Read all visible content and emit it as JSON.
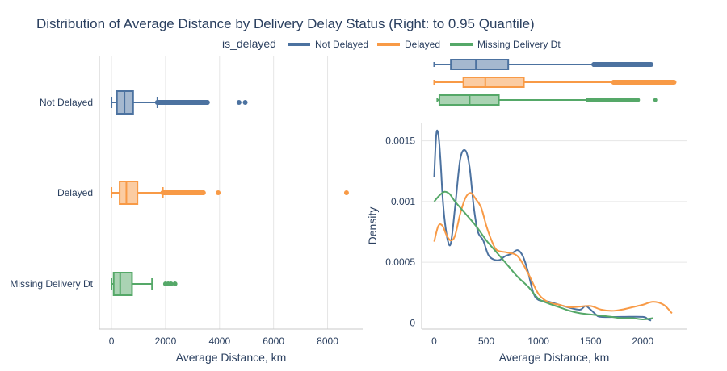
{
  "chart_data": {
    "title": "Distribution of Average Distance by Delivery Delay Status (Right: to 0.95 Quantile)",
    "legend": {
      "title": "is_delayed",
      "placement": "top-right",
      "items": [
        {
          "label": "Not Delayed",
          "color": "#4c72a0"
        },
        {
          "label": "Delayed",
          "color": "#f89a46"
        },
        {
          "label": "Missing Delivery Dt",
          "color": "#55a868"
        }
      ]
    },
    "panels": [
      {
        "type": "box",
        "orientation": "horizontal",
        "xlabel": "Average Distance, km",
        "ylabel": "",
        "xlim": [
          -450,
          9300
        ],
        "xticks": [
          0,
          2000,
          4000,
          6000,
          8000
        ],
        "xtick_labels": [
          "0",
          "2000",
          "4000",
          "6000",
          "8000"
        ],
        "grid": true,
        "categories": [
          "Not Delayed",
          "Delayed",
          "Missing Delivery Dt"
        ],
        "series": [
          {
            "name": "Not Delayed",
            "color": "#4c72a0",
            "min": 0,
            "q1": 200,
            "median": 480,
            "q3": 800,
            "whisker_high": 1700,
            "outliers": [
              1700,
              3550,
              4720,
              4950
            ]
          },
          {
            "name": "Delayed",
            "color": "#f89a46",
            "min": 0,
            "q1": 300,
            "median": 550,
            "q3": 960,
            "whisker_high": 1900,
            "outliers": [
              1900,
              3400,
              3950,
              8700
            ]
          },
          {
            "name": "Missing Delivery Dt",
            "color": "#55a868",
            "min": 0,
            "q1": 80,
            "median": 320,
            "q3": 760,
            "whisker_high": 1500,
            "outliers": [
              2000,
              2100,
              2200,
              2350
            ]
          }
        ]
      },
      {
        "type": "box",
        "orientation": "horizontal",
        "role": "marginal",
        "xlim": [
          -120,
          2420
        ],
        "series": [
          {
            "name": "Not Delayed",
            "color": "#4c72a0",
            "min": 0,
            "q1": 160,
            "median": 400,
            "q3": 710,
            "whisker_high": 1530,
            "outliers": [
              1530,
              2080
            ]
          },
          {
            "name": "Delayed",
            "color": "#f89a46",
            "min": 0,
            "q1": 280,
            "median": 490,
            "q3": 860,
            "whisker_high": 1720,
            "outliers": [
              1720,
              2300
            ]
          },
          {
            "name": "Missing Delivery Dt",
            "color": "#55a868",
            "min": 30,
            "q1": 50,
            "median": 340,
            "q3": 620,
            "whisker_high": 1460,
            "outliers": [
              1480,
              1950,
              2120
            ]
          }
        ]
      },
      {
        "type": "line",
        "subtype": "density",
        "xlabel": "Average Distance, km",
        "ylabel": "Density",
        "xlim": [
          -120,
          2420
        ],
        "ylim": [
          -5e-05,
          0.00165
        ],
        "xticks": [
          0,
          500,
          1000,
          1500,
          2000
        ],
        "xtick_labels": [
          "0",
          "500",
          "1000",
          "1500",
          "2000"
        ],
        "yticks": [
          0,
          0.0005,
          0.001,
          0.0015
        ],
        "ytick_labels": [
          "0",
          "0.0005",
          "0.001",
          "0.0015"
        ],
        "grid": true,
        "series": [
          {
            "name": "Not Delayed",
            "color": "#4c72a0",
            "x": [
              0,
              20,
              40,
              60,
              80,
              100,
              130,
              160,
              200,
              250,
              300,
              340,
              380,
              420,
              470,
              520,
              580,
              630,
              680,
              740,
              800,
              850,
              900,
              950,
              1000,
              1100,
              1200,
              1300,
              1400,
              1450,
              1500,
              1550,
              1600,
              1800,
              2000,
              2050,
              2080
            ],
            "y": [
              0.0012,
              0.00155,
              0.00155,
              0.00135,
              0.00105,
              0.00085,
              0.00068,
              0.00066,
              0.00095,
              0.00135,
              0.00142,
              0.00128,
              0.00095,
              0.00075,
              0.00068,
              0.00056,
              0.00052,
              0.00052,
              0.00055,
              0.00057,
              0.0006,
              0.00055,
              0.00042,
              0.00025,
              0.00019,
              0.000175,
              0.00015,
              0.000125,
              0.00011,
              0.00014,
              0.00011,
              7e-05,
              5e-05,
              5e-05,
              5e-05,
              3e-05,
              2e-05
            ]
          },
          {
            "name": "Delayed",
            "color": "#f89a46",
            "x": [
              0,
              40,
              80,
              120,
              160,
              200,
              250,
              300,
              350,
              400,
              450,
              500,
              550,
              600,
              700,
              800,
              900,
              1000,
              1100,
              1200,
              1300,
              1400,
              1500,
              1600,
              1700,
              1800,
              1900,
              2000,
              2100,
              2200,
              2280
            ],
            "y": [
              0.00067,
              0.0008,
              0.0008,
              0.00072,
              0.00068,
              0.00072,
              0.0009,
              0.00103,
              0.00107,
              0.00102,
              0.00095,
              0.0008,
              0.00068,
              0.0006,
              0.00058,
              0.00055,
              0.00041,
              0.00024,
              0.00017,
              0.00015,
              0.00013,
              0.000135,
              0.00014,
              0.00011,
              0.0001,
              0.00011,
              0.00013,
              0.00015,
              0.000175,
              0.00015,
              8e-05
            ]
          },
          {
            "name": "Missing Delivery Dt",
            "color": "#55a868",
            "x": [
              0,
              50,
              100,
              150,
              200,
              300,
              400,
              500,
              600,
              700,
              800,
              900,
              1000,
              1100,
              1200,
              1300,
              1400,
              1500,
              1600,
              1700,
              1800,
              1900,
              2000,
              2100
            ],
            "y": [
              0.001,
              0.00105,
              0.00108,
              0.00106,
              0.001,
              0.0009,
              0.0008,
              0.00068,
              0.00058,
              0.00048,
              0.00038,
              0.0003,
              0.0002,
              0.00016,
              0.00013,
              0.0001,
              8e-05,
              7e-05,
              6e-05,
              5e-05,
              4e-05,
              4e-05,
              3e-05,
              4e-05
            ]
          }
        ]
      }
    ]
  }
}
